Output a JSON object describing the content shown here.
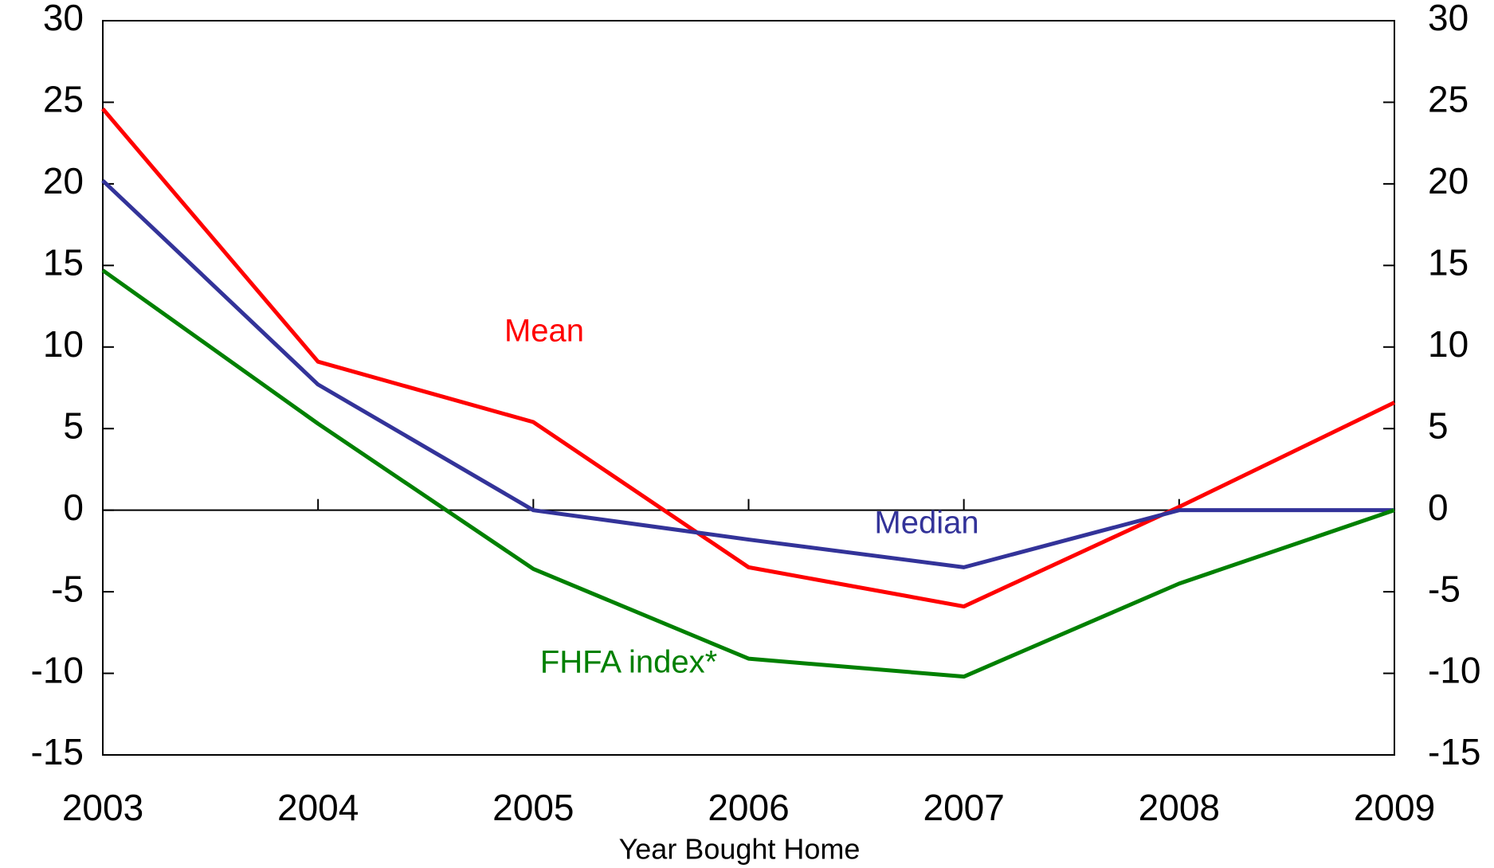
{
  "chart_data": {
    "type": "line",
    "xlabel": "Year Bought Home",
    "x": [
      2003,
      2004,
      2005,
      2006,
      2007,
      2008,
      2009
    ],
    "xlim": [
      2003,
      2009
    ],
    "xticks": [
      2003,
      2004,
      2005,
      2006,
      2007,
      2008,
      2009
    ],
    "ylim": [
      -15,
      30
    ],
    "yticks": [
      -15,
      -10,
      -5,
      0,
      5,
      10,
      15,
      20,
      25,
      30
    ],
    "y2lim": [
      -15,
      30
    ],
    "y2ticks": [
      -15,
      -10,
      -5,
      0,
      5,
      10,
      15,
      20,
      25,
      30
    ],
    "grid": false,
    "series": [
      {
        "name": "Mean",
        "color": "#ff0000",
        "values": [
          24.6,
          9.1,
          5.4,
          -3.5,
          -5.9,
          0.2,
          6.6
        ]
      },
      {
        "name": "Median",
        "color": "#333399",
        "values": [
          20.2,
          7.7,
          0,
          -1.8,
          -3.5,
          0,
          0
        ]
      },
      {
        "name": "FHFA index*",
        "color": "#008000",
        "values": [
          14.7,
          5.3,
          -3.6,
          -9.1,
          -10.2,
          -4.5,
          0
        ]
      }
    ]
  }
}
